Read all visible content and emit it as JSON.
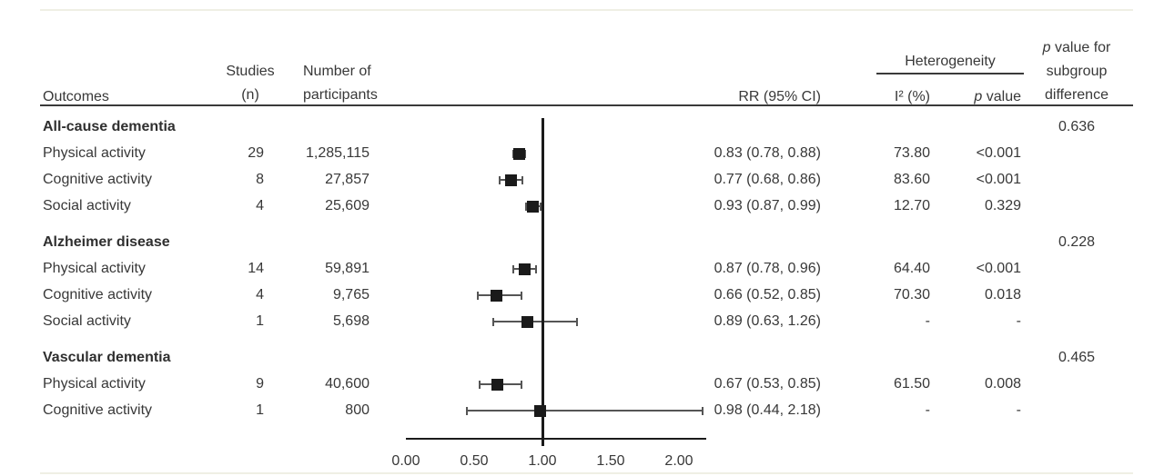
{
  "figure": {
    "columns": {
      "outcomes": "Outcomes",
      "studies_line1": "Studies",
      "studies_line2": "(n)",
      "participants_line1": "Number of",
      "participants_line2": "participants",
      "rr": "RR (95% CI)",
      "heterogeneity": "Heterogeneity",
      "i2": "I² (%)",
      "p_italic": "p",
      "p_rest": " value",
      "subgroup_line1_italic": "p",
      "subgroup_line1_rest": " value for",
      "subgroup_line2": "subgroup",
      "subgroup_line3": "difference"
    },
    "colors": {
      "text": "#383838",
      "marker": "#1a1a1a",
      "rule": "#3a3a3a",
      "whisker": "#555555"
    }
  },
  "chart_data": {
    "type": "scatter",
    "variant": "forest-plot",
    "title": "",
    "xlabel": "",
    "ylabel": "",
    "x_axis": {
      "min": 0,
      "max": 2,
      "tick_labels": [
        "0.00",
        "0.50",
        "1.00",
        "1.50",
        "2.00"
      ],
      "tick_values": [
        0,
        0.5,
        1,
        1.5,
        2
      ],
      "reference_line": 1.0,
      "axis_line_extends_to": 2.2,
      "grid": false
    },
    "groups": [
      {
        "name": "All-cause dementia",
        "subgroup_p": "0.636",
        "rows": [
          {
            "outcome": "Physical activity",
            "studies": "29",
            "participants": "1,285,115",
            "rr": 0.83,
            "ci_low": 0.78,
            "ci_high": 0.88,
            "rr_text": "0.83 (0.78, 0.88)",
            "i2": "73.80",
            "p": "<0.001"
          },
          {
            "outcome": "Cognitive activity",
            "studies": "8",
            "participants": "27,857",
            "rr": 0.77,
            "ci_low": 0.68,
            "ci_high": 0.86,
            "rr_text": "0.77 (0.68, 0.86)",
            "i2": "83.60",
            "p": "<0.001"
          },
          {
            "outcome": "Social activity",
            "studies": "4",
            "participants": "25,609",
            "rr": 0.93,
            "ci_low": 0.87,
            "ci_high": 0.99,
            "rr_text": "0.93 (0.87, 0.99)",
            "i2": "12.70",
            "p": "0.329"
          }
        ]
      },
      {
        "name": "Alzheimer disease",
        "subgroup_p": "0.228",
        "rows": [
          {
            "outcome": "Physical activity",
            "studies": "14",
            "participants": "59,891",
            "rr": 0.87,
            "ci_low": 0.78,
            "ci_high": 0.96,
            "rr_text": "0.87 (0.78, 0.96)",
            "i2": "64.40",
            "p": "<0.001"
          },
          {
            "outcome": "Cognitive activity",
            "studies": "4",
            "participants": "9,765",
            "rr": 0.66,
            "ci_low": 0.52,
            "ci_high": 0.85,
            "rr_text": "0.66 (0.52, 0.85)",
            "i2": "70.30",
            "p": "0.018"
          },
          {
            "outcome": "Social activity",
            "studies": "1",
            "participants": "5,698",
            "rr": 0.89,
            "ci_low": 0.63,
            "ci_high": 1.26,
            "rr_text": "0.89 (0.63, 1.26)",
            "i2": "-",
            "p": "-"
          }
        ]
      },
      {
        "name": "Vascular dementia",
        "subgroup_p": "0.465",
        "rows": [
          {
            "outcome": "Physical activity",
            "studies": "9",
            "participants": "40,600",
            "rr": 0.67,
            "ci_low": 0.53,
            "ci_high": 0.85,
            "rr_text": "0.67 (0.53, 0.85)",
            "i2": "61.50",
            "p": "0.008"
          },
          {
            "outcome": "Cognitive activity",
            "studies": "1",
            "participants": "800",
            "rr": 0.98,
            "ci_low": 0.44,
            "ci_high": 2.18,
            "rr_text": "0.98 (0.44, 2.18)",
            "i2": "-",
            "p": "-"
          }
        ]
      }
    ]
  }
}
